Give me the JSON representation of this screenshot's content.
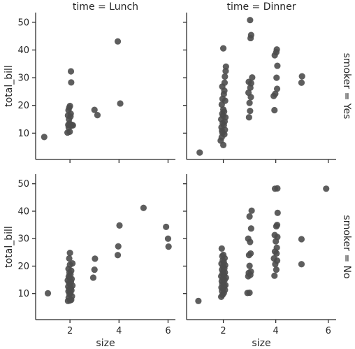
{
  "chart_data": {
    "type": "scatter",
    "xlabel": "size",
    "ylabel": "total_bill",
    "xlim": [
      0.6,
      6.3
    ],
    "ylim": [
      0.5,
      53.5
    ],
    "xticks": [
      2,
      4,
      6
    ],
    "yticks": [
      10,
      20,
      30,
      40,
      50
    ],
    "marker_color": "#4d4d4d",
    "col_titles": [
      "time = Lunch",
      "time = Dinner"
    ],
    "row_titles": [
      "smoker = Yes",
      "smoker = No"
    ],
    "panels": [
      {
        "row": 0,
        "col": 0,
        "points": [
          [
            0.95,
            8.6
          ],
          [
            1.9,
            10.2
          ],
          [
            1.95,
            12.0
          ],
          [
            1.93,
            13.0
          ],
          [
            1.98,
            13.5
          ],
          [
            2.05,
            12.7
          ],
          [
            1.96,
            15.0
          ],
          [
            2.02,
            16.0
          ],
          [
            1.92,
            16.4
          ],
          [
            2.03,
            17.0
          ],
          [
            1.94,
            18.3
          ],
          [
            1.97,
            19.2
          ],
          [
            2.0,
            19.8
          ],
          [
            2.05,
            28.3
          ],
          [
            2.04,
            32.3
          ],
          [
            2.08,
            13.0
          ],
          [
            2.12,
            12.8
          ],
          [
            1.99,
            10.5
          ],
          [
            3.0,
            18.4
          ],
          [
            3.12,
            16.5
          ],
          [
            3.95,
            43.1
          ],
          [
            4.05,
            20.7
          ]
        ]
      },
      {
        "row": 0,
        "col": 1,
        "points": [
          [
            1.1,
            3.0
          ],
          [
            1.9,
            7.3
          ],
          [
            1.94,
            8.5
          ],
          [
            2.0,
            5.7
          ],
          [
            2.04,
            9.6
          ],
          [
            1.97,
            10.1
          ],
          [
            1.95,
            10.8
          ],
          [
            2.06,
            11.2
          ],
          [
            1.93,
            12.1
          ],
          [
            2.02,
            12.9
          ],
          [
            1.98,
            13.6
          ],
          [
            2.05,
            14.2
          ],
          [
            1.92,
            15.0
          ],
          [
            2.08,
            15.7
          ],
          [
            1.99,
            16.3
          ],
          [
            1.96,
            17.0
          ],
          [
            2.03,
            17.8
          ],
          [
            2.0,
            18.5
          ],
          [
            1.94,
            20.3
          ],
          [
            2.07,
            21.7
          ],
          [
            1.97,
            22.4
          ],
          [
            2.02,
            24.1
          ],
          [
            2.04,
            25.3
          ],
          [
            1.96,
            26.8
          ],
          [
            2.05,
            28.2
          ],
          [
            2.06,
            30.4
          ],
          [
            2.09,
            32.4
          ],
          [
            2.1,
            34.0
          ],
          [
            2.0,
            40.6
          ],
          [
            2.98,
            15.7
          ],
          [
            3.02,
            18.0
          ],
          [
            3.0,
            20.9
          ],
          [
            3.05,
            23.0
          ],
          [
            2.96,
            24.6
          ],
          [
            3.03,
            26.4
          ],
          [
            3.06,
            28.0
          ],
          [
            2.97,
            28.5
          ],
          [
            3.1,
            30.1
          ],
          [
            3.04,
            44.3
          ],
          [
            3.06,
            45.4
          ],
          [
            3.02,
            50.8
          ],
          [
            3.95,
            18.3
          ],
          [
            3.92,
            23.4
          ],
          [
            3.98,
            24.2
          ],
          [
            4.05,
            26.0
          ],
          [
            4.03,
            30.0
          ],
          [
            4.06,
            34.3
          ],
          [
            3.96,
            38.1
          ],
          [
            4.02,
            39.2
          ],
          [
            4.04,
            40.2
          ],
          [
            4.98,
            28.2
          ],
          [
            5.0,
            30.5
          ]
        ]
      },
      {
        "row": 1,
        "col": 0,
        "points": [
          [
            1.1,
            10.1
          ],
          [
            1.92,
            7.3
          ],
          [
            2.0,
            7.5
          ],
          [
            2.05,
            7.7
          ],
          [
            1.95,
            8.5
          ],
          [
            2.08,
            9.0
          ],
          [
            1.98,
            9.8
          ],
          [
            2.02,
            10.3
          ],
          [
            1.94,
            10.8
          ],
          [
            2.06,
            11.2
          ],
          [
            1.97,
            11.6
          ],
          [
            2.03,
            12.0
          ],
          [
            1.93,
            12.5
          ],
          [
            2.1,
            12.9
          ],
          [
            2.0,
            13.4
          ],
          [
            1.96,
            13.9
          ],
          [
            2.04,
            14.3
          ],
          [
            1.91,
            14.8
          ],
          [
            2.07,
            15.3
          ],
          [
            1.99,
            15.8
          ],
          [
            1.95,
            16.2
          ],
          [
            2.02,
            17.0
          ],
          [
            1.98,
            17.6
          ],
          [
            2.05,
            18.3
          ],
          [
            1.94,
            19.0
          ],
          [
            2.0,
            20.5
          ],
          [
            2.1,
            21.0
          ],
          [
            1.97,
            22.8
          ],
          [
            2.0,
            24.8
          ],
          [
            2.95,
            15.8
          ],
          [
            3.0,
            18.7
          ],
          [
            3.02,
            22.7
          ],
          [
            3.95,
            24.0
          ],
          [
            3.97,
            27.2
          ],
          [
            4.02,
            34.8
          ],
          [
            5.0,
            41.2
          ],
          [
            5.92,
            34.3
          ],
          [
            6.0,
            30.0
          ],
          [
            6.02,
            27.1
          ]
        ]
      },
      {
        "row": 1,
        "col": 1,
        "points": [
          [
            1.05,
            7.3
          ],
          [
            1.92,
            8.8
          ],
          [
            1.97,
            9.5
          ],
          [
            2.02,
            10.2
          ],
          [
            1.95,
            10.9
          ],
          [
            2.06,
            11.3
          ],
          [
            1.99,
            11.8
          ],
          [
            1.93,
            12.2
          ],
          [
            2.04,
            12.6
          ],
          [
            2.08,
            13.1
          ],
          [
            1.96,
            13.5
          ],
          [
            2.01,
            14.0
          ],
          [
            1.94,
            14.5
          ],
          [
            2.05,
            15.0
          ],
          [
            1.98,
            15.4
          ],
          [
            2.1,
            15.8
          ],
          [
            1.92,
            16.3
          ],
          [
            2.03,
            16.8
          ],
          [
            1.97,
            17.2
          ],
          [
            2.06,
            17.7
          ],
          [
            2.0,
            18.2
          ],
          [
            1.95,
            18.7
          ],
          [
            2.04,
            19.2
          ],
          [
            1.99,
            19.8
          ],
          [
            2.07,
            20.3
          ],
          [
            1.93,
            20.9
          ],
          [
            2.02,
            21.4
          ],
          [
            1.98,
            22.1
          ],
          [
            2.05,
            22.9
          ],
          [
            1.96,
            23.6
          ],
          [
            2.0,
            24.1
          ],
          [
            1.94,
            26.4
          ],
          [
            2.92,
            10.2
          ],
          [
            3.0,
            10.3
          ],
          [
            2.95,
            16.3
          ],
          [
            3.03,
            16.8
          ],
          [
            2.97,
            17.5
          ],
          [
            3.05,
            18.0
          ],
          [
            3.0,
            20.1
          ],
          [
            2.98,
            24.0
          ],
          [
            3.04,
            24.6
          ],
          [
            3.02,
            28.8
          ],
          [
            2.95,
            30.0
          ],
          [
            3.06,
            33.7
          ],
          [
            3.0,
            38.1
          ],
          [
            3.08,
            40.2
          ],
          [
            3.95,
            16.5
          ],
          [
            4.02,
            18.7
          ],
          [
            3.98,
            20.7
          ],
          [
            4.05,
            22.0
          ],
          [
            3.93,
            22.8
          ],
          [
            4.03,
            24.6
          ],
          [
            3.97,
            25.3
          ],
          [
            4.04,
            26.7
          ],
          [
            4.0,
            29.0
          ],
          [
            4.06,
            30.6
          ],
          [
            3.96,
            31.3
          ],
          [
            4.02,
            34.5
          ],
          [
            4.05,
            35.0
          ],
          [
            4.07,
            39.4
          ],
          [
            3.97,
            48.2
          ],
          [
            4.06,
            48.3
          ],
          [
            4.98,
            20.7
          ],
          [
            4.98,
            29.8
          ],
          [
            5.92,
            48.2
          ]
        ]
      }
    ]
  }
}
